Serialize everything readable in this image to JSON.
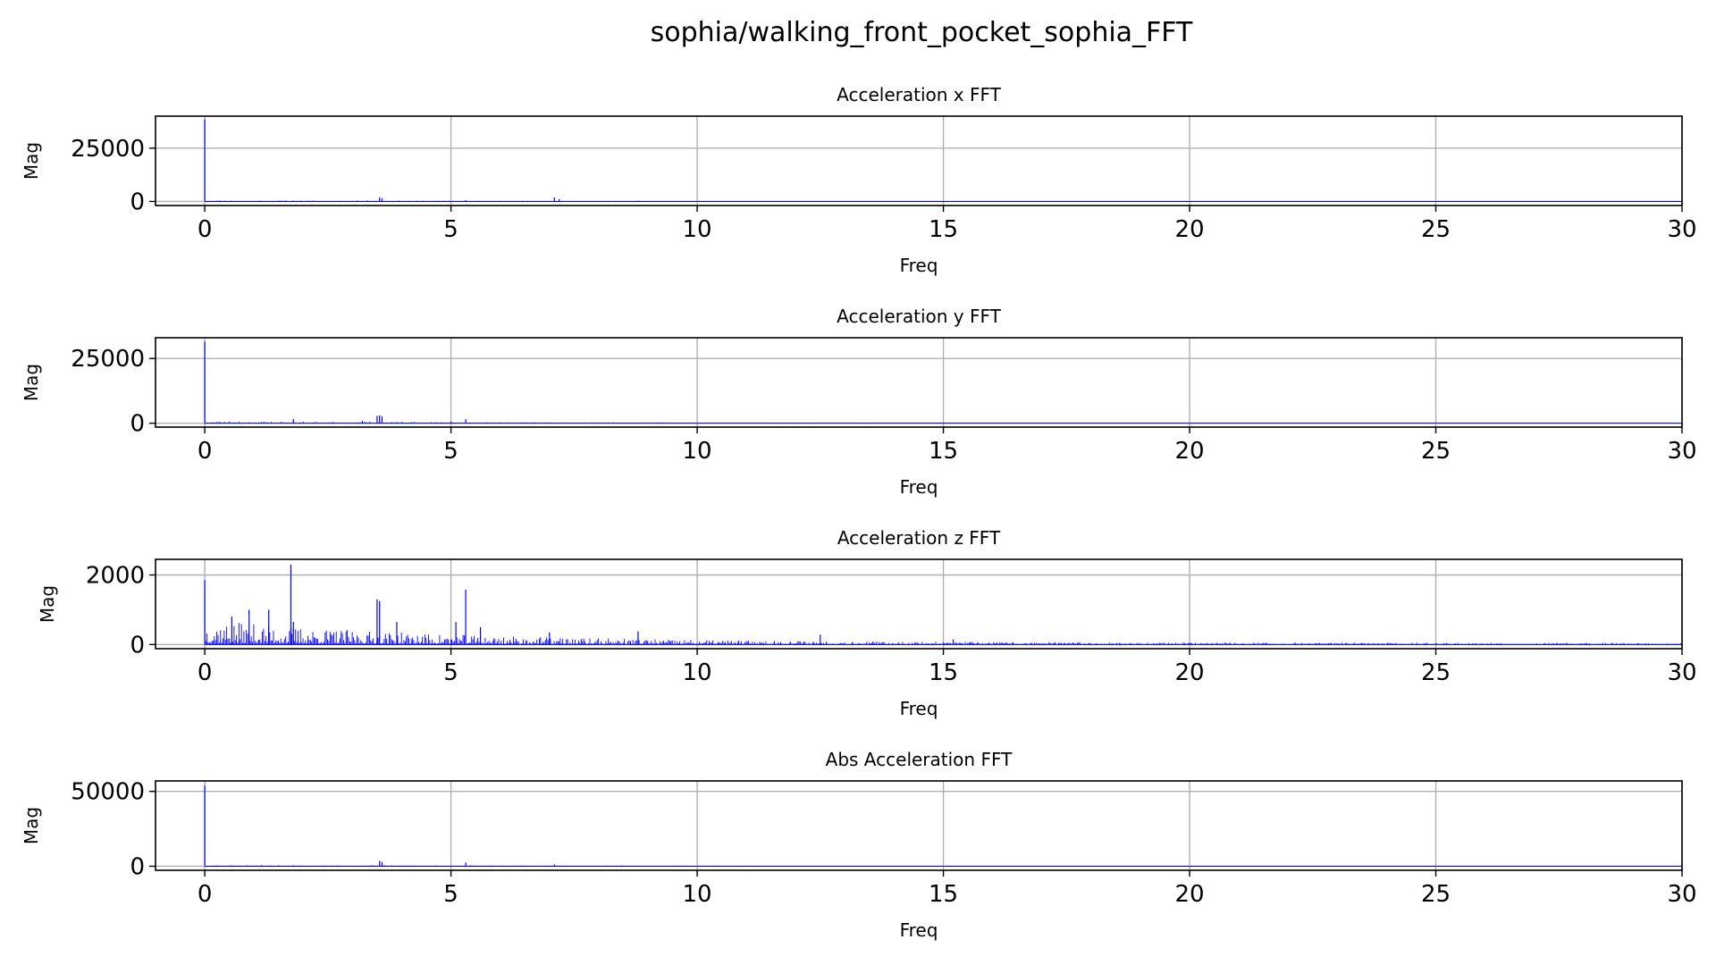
{
  "figure": {
    "suptitle": "sophia/walking_front_pocket_sophia_FFT"
  },
  "style": {
    "line_color": "#0000ff",
    "grid_color": "#b0b0b0",
    "axes_color": "#000000"
  },
  "chart_data": [
    {
      "type": "line",
      "title": "Acceleration x FFT",
      "xlabel": "Freq",
      "ylabel": "Mag",
      "xlim": [
        -1,
        30
      ],
      "ylim": [
        -1900,
        40000
      ],
      "xticks": [
        0,
        5,
        10,
        15,
        20,
        25,
        30
      ],
      "yticks": [
        0,
        25000
      ],
      "grid": true,
      "spikes": [
        [
          0,
          38500
        ],
        [
          1.8,
          250
        ],
        [
          3.55,
          1800
        ],
        [
          3.6,
          1500
        ],
        [
          5.3,
          650
        ],
        [
          7.1,
          1900
        ],
        [
          7.2,
          1100
        ],
        [
          8.8,
          350
        ],
        [
          3.3,
          450
        ],
        [
          6.0,
          300
        ]
      ],
      "noise": {
        "start": 0.05,
        "end": 30,
        "step": 0.05,
        "decay": 0.12,
        "level": 300,
        "baseline": 40,
        "seed": 11
      }
    },
    {
      "type": "line",
      "title": "Acceleration y FFT",
      "xlabel": "Freq",
      "ylabel": "Mag",
      "xlim": [
        -1,
        30
      ],
      "ylim": [
        -1500,
        33000
      ],
      "xticks": [
        0,
        5,
        10,
        15,
        20,
        25,
        30
      ],
      "yticks": [
        0,
        25000
      ],
      "grid": true,
      "spikes": [
        [
          0,
          31500
        ],
        [
          1.8,
          1600
        ],
        [
          3.5,
          2800
        ],
        [
          3.55,
          3000
        ],
        [
          3.6,
          2600
        ],
        [
          5.3,
          1600
        ],
        [
          5.0,
          600
        ],
        [
          3.2,
          900
        ]
      ],
      "noise": {
        "start": 0.05,
        "end": 30,
        "step": 0.05,
        "decay": 0.15,
        "level": 450,
        "baseline": 40,
        "seed": 23
      }
    },
    {
      "type": "line",
      "title": "Acceleration z FFT",
      "xlabel": "Freq",
      "ylabel": "Mag",
      "xlim": [
        -1,
        30
      ],
      "ylim": [
        -120,
        2450
      ],
      "xticks": [
        0,
        5,
        10,
        15,
        20,
        25,
        30
      ],
      "yticks": [
        0,
        2000
      ],
      "grid": true,
      "spikes": [
        [
          0,
          1850
        ],
        [
          0.55,
          800
        ],
        [
          0.9,
          1000
        ],
        [
          1.3,
          1000
        ],
        [
          1.75,
          2300
        ],
        [
          1.8,
          650
        ],
        [
          3.5,
          1300
        ],
        [
          3.55,
          1250
        ],
        [
          3.9,
          650
        ],
        [
          5.3,
          1580
        ],
        [
          5.1,
          650
        ],
        [
          5.6,
          500
        ],
        [
          7.0,
          350
        ],
        [
          8.8,
          380
        ],
        [
          12.5,
          280
        ],
        [
          15.2,
          150
        ]
      ],
      "noise": {
        "start": 0.02,
        "end": 30,
        "step": 0.025,
        "decay": 0.2,
        "level": 360,
        "baseline": 25,
        "seed": 37
      }
    },
    {
      "type": "line",
      "title": "Abs Acceleration FFT",
      "xlabel": "Freq",
      "ylabel": "Mag",
      "xlim": [
        -1,
        30
      ],
      "ylim": [
        -2700,
        57000
      ],
      "xticks": [
        0,
        5,
        10,
        15,
        20,
        25,
        30
      ],
      "yticks": [
        0,
        50000
      ],
      "grid": true,
      "spikes": [
        [
          0,
          54000
        ],
        [
          3.55,
          3600
        ],
        [
          3.6,
          2900
        ],
        [
          5.3,
          2500
        ],
        [
          7.1,
          1200
        ],
        [
          1.8,
          600
        ]
      ],
      "noise": {
        "start": 0.05,
        "end": 30,
        "step": 0.05,
        "decay": 0.12,
        "level": 500,
        "baseline": 60,
        "seed": 53
      }
    }
  ]
}
